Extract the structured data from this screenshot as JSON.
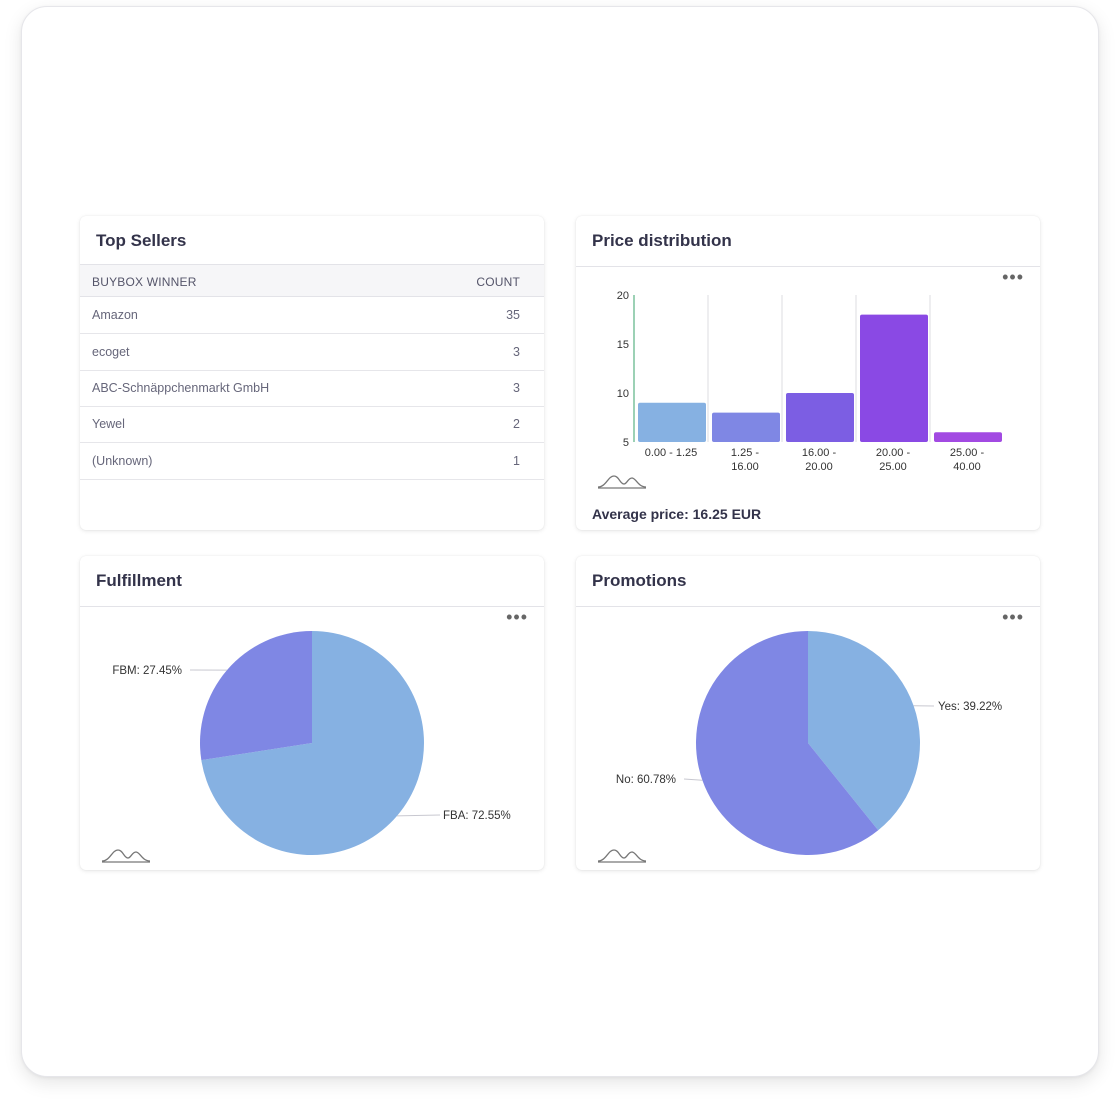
{
  "top_sellers": {
    "title": "Top Sellers",
    "columns": [
      "BUYBOX WINNER",
      "COUNT"
    ],
    "rows": [
      {
        "name": "Amazon",
        "count": "35"
      },
      {
        "name": "ecoget",
        "count": "3"
      },
      {
        "name": "ABC-Schnäppchenmarkt GmbH",
        "count": "3"
      },
      {
        "name": "Yewel",
        "count": "2"
      },
      {
        "name": "(Unknown)",
        "count": "1"
      }
    ]
  },
  "price_distribution": {
    "title": "Price distribution",
    "average_label": "Average price: 16.25 EUR",
    "menu_icon": "more-horizontal-icon",
    "chart_data": {
      "type": "bar",
      "categories": [
        [
          "0.00",
          "-",
          "1.25"
        ],
        [
          "1.25",
          "-",
          "16.00"
        ],
        [
          "16.00",
          "-",
          "20.00"
        ],
        [
          "20.00",
          "-",
          "25.00"
        ],
        [
          "25.00",
          "-",
          "40.00"
        ]
      ],
      "values": [
        9,
        8,
        10,
        18,
        6
      ],
      "ylim": [
        5,
        20
      ],
      "yticks": [
        5,
        10,
        15,
        20
      ],
      "colors": [
        "#86b1e2",
        "#7f87e4",
        "#7c5ee3",
        "#8a49e4",
        "#a24ae2"
      ],
      "grid": true
    }
  },
  "fulfillment": {
    "title": "Fulfillment",
    "menu_icon": "more-horizontal-icon",
    "chart_data": {
      "type": "pie",
      "slices": [
        {
          "label": "FBA: 72.55%",
          "value": 72.55,
          "color": "#86b1e2"
        },
        {
          "label": "FBM: 27.45%",
          "value": 27.45,
          "color": "#7f87e4"
        }
      ]
    }
  },
  "promotions": {
    "title": "Promotions",
    "menu_icon": "more-horizontal-icon",
    "chart_data": {
      "type": "pie",
      "slices": [
        {
          "label": "Yes: 39.22%",
          "value": 39.22,
          "color": "#86b1e2"
        },
        {
          "label": "No: 60.78%",
          "value": 60.78,
          "color": "#7f87e4"
        }
      ]
    }
  }
}
